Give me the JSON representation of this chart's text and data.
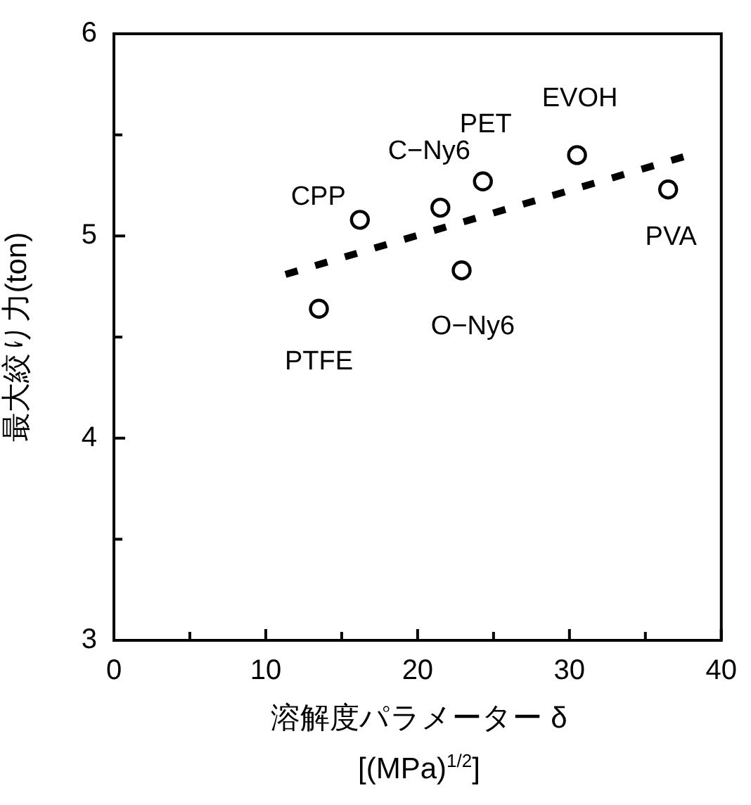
{
  "chart_data": {
    "type": "scatter",
    "xlabel": "溶解度パラメーター δ\n[(MPa)$^{1/2}$]",
    "ylabel": "最大絞り力(ton)",
    "xlim": [
      0,
      40
    ],
    "xticks": [
      0,
      {
        "value": 5,
        "label": null
      },
      10,
      {
        "value": 15,
        "label": null
      },
      20,
      {
        "value": 25,
        "label": null
      },
      30,
      {
        "value": 35,
        "label": null
      },
      40
    ],
    "ylim": [
      3,
      6
    ],
    "yticks": [
      3,
      {
        "value": 3.5,
        "label": null
      },
      4,
      {
        "value": 4.5,
        "label": null
      },
      5,
      {
        "value": 5.5,
        "label": null
      },
      6
    ],
    "grid": false,
    "legend": false,
    "series": [
      {
        "color": "#000000",
        "marker": "circle",
        "x": [
          13.5,
          16.2,
          21.5,
          24.3,
          22.9,
          30.5,
          36.5
        ],
        "values": [
          4.64,
          5.08,
          5.14,
          5.27,
          4.83,
          5.4,
          5.23
        ]
      },
      {
        "type": "line",
        "color": "#000000",
        "marker": "none",
        "line_style": "dashed",
        "x": [
          11.3,
          37.9
        ],
        "values": [
          4.81,
          5.4
        ]
      }
    ],
    "annotations": [
      {
        "text": "PTFE",
        "x": 13.5,
        "y": 4.64
      },
      {
        "text": "CPP",
        "x": 16.2,
        "y": 5.08
      },
      {
        "text": "C−Ny6",
        "x": 21.5,
        "y": 5.14
      },
      {
        "text": "PET",
        "x": 24.3,
        "y": 5.27
      },
      {
        "text": "O−Ny6",
        "x": 22.9,
        "y": 4.83
      },
      {
        "text": "EVOH",
        "x": 30.5,
        "y": 5.4
      },
      {
        "text": "PVA",
        "x": 36.5,
        "y": 5.23
      }
    ]
  }
}
